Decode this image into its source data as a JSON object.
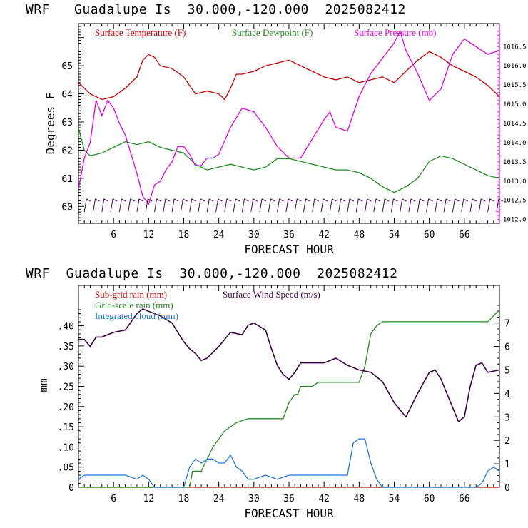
{
  "top_title": "WRF   Guadalupe Is  30.000,-120.000  2025082412",
  "bottom_title": "WRF  Guadalupe Is  30.000,-120.000  2025082412",
  "colors": {
    "temp": "#c00000",
    "dew": "#228b22",
    "pres": "#dd00dd",
    "subgrid": "#c00000",
    "gridscale": "#228b22",
    "cloud": "#1e78d2",
    "wind": "#3a0040",
    "wbarb": "#4b0055"
  },
  "chart_data": [
    {
      "type": "line",
      "xlabel": "FORECAST HOUR",
      "ylabel": "Degrees F",
      "xlim": [
        0,
        72
      ],
      "ylim": [
        59.4,
        66.5
      ],
      "y2lim": [
        1011.9,
        1017.1
      ],
      "x_ticks": [
        6,
        12,
        18,
        24,
        30,
        36,
        42,
        48,
        54,
        60,
        66
      ],
      "y_ticks": [
        60,
        61,
        62,
        63,
        64,
        65
      ],
      "y2_ticks": [
        "1012.0",
        "1012.5",
        "1013.0",
        "1013.5",
        "1014.0",
        "1014.5",
        "1015.0",
        "1015.5",
        "1016.0",
        "1016.5"
      ],
      "legend": [
        "Surface Temperature (F)",
        "Surface Dewpoint (F)",
        "Surface Pressure (mb)"
      ],
      "series": [
        {
          "name": "Surface Temperature (F)",
          "axis": "left",
          "x": [
            0,
            2,
            4,
            6,
            8,
            10,
            11,
            12,
            13,
            14,
            16,
            18,
            20,
            22,
            24,
            25,
            26,
            27,
            28,
            30,
            32,
            34,
            36,
            38,
            40,
            42,
            44,
            46,
            48,
            50,
            52,
            54,
            56,
            58,
            60,
            62,
            64,
            66,
            68,
            70,
            72
          ],
          "values": [
            64.4,
            64.0,
            63.8,
            63.9,
            64.2,
            64.6,
            65.2,
            65.4,
            65.3,
            65.0,
            64.9,
            64.6,
            64.0,
            64.1,
            64.0,
            63.8,
            64.2,
            64.7,
            64.7,
            64.8,
            65.0,
            65.1,
            65.2,
            65.0,
            64.8,
            64.6,
            64.5,
            64.6,
            64.4,
            64.5,
            64.6,
            64.4,
            64.8,
            65.2,
            65.5,
            65.3,
            65.0,
            64.8,
            64.6,
            64.3,
            63.9
          ]
        },
        {
          "name": "Surface Dewpoint (F)",
          "axis": "left",
          "x": [
            0,
            1,
            2,
            4,
            6,
            8,
            10,
            12,
            14,
            16,
            18,
            20,
            22,
            24,
            26,
            28,
            30,
            32,
            34,
            36,
            38,
            40,
            42,
            44,
            46,
            48,
            50,
            52,
            54,
            56,
            58,
            60,
            62,
            64,
            66,
            68,
            70,
            72
          ],
          "values": [
            62.8,
            62.0,
            61.8,
            61.9,
            62.1,
            62.3,
            62.2,
            62.3,
            62.1,
            62.0,
            61.9,
            61.5,
            61.3,
            61.4,
            61.5,
            61.4,
            61.3,
            61.4,
            61.7,
            61.7,
            61.6,
            61.5,
            61.4,
            61.3,
            61.3,
            61.2,
            61.0,
            60.7,
            60.5,
            60.7,
            61.0,
            61.6,
            61.8,
            61.7,
            61.5,
            61.3,
            61.1,
            61.0
          ]
        },
        {
          "name": "Surface Pressure (mb)",
          "axis": "right",
          "x": [
            0,
            1,
            2,
            3,
            4,
            5,
            6,
            7,
            8,
            9,
            10,
            11,
            12,
            13,
            14,
            15,
            16,
            17,
            18,
            19,
            20,
            21,
            22,
            23,
            24,
            26,
            28,
            30,
            32,
            34,
            36,
            38,
            40,
            42,
            43,
            44,
            46,
            48,
            50,
            52,
            54,
            55,
            56,
            58,
            60,
            62,
            64,
            66,
            68,
            70,
            72
          ],
          "values": [
            1012.8,
            1013.6,
            1014.0,
            1015.1,
            1014.7,
            1015.1,
            1014.9,
            1014.5,
            1014.2,
            1013.7,
            1013.2,
            1012.6,
            1012.4,
            1012.9,
            1013.0,
            1013.3,
            1013.5,
            1013.9,
            1013.9,
            1013.7,
            1013.4,
            1013.4,
            1013.6,
            1013.6,
            1013.7,
            1014.4,
            1014.9,
            1014.8,
            1014.4,
            1013.9,
            1013.6,
            1013.6,
            1014.1,
            1014.6,
            1014.8,
            1014.4,
            1014.3,
            1015.2,
            1015.8,
            1016.2,
            1016.6,
            1016.9,
            1016.4,
            1015.8,
            1015.1,
            1015.4,
            1016.3,
            1016.7,
            1016.5,
            1016.3,
            1016.4
          ]
        }
      ]
    },
    {
      "type": "line",
      "xlabel": "FORECAST HOUR",
      "ylabel": "mm",
      "xlim": [
        0,
        72
      ],
      "ylim": [
        0,
        0.5
      ],
      "y2lim": [
        0,
        8.6
      ],
      "x_ticks": [
        6,
        12,
        18,
        24,
        30,
        36,
        42,
        48,
        54,
        60,
        66
      ],
      "y_ticks": [
        ".40",
        ".35",
        ".30",
        ".25",
        ".20",
        ".15",
        ".10",
        ".05",
        "0"
      ],
      "y_tick_values": [
        0.4,
        0.35,
        0.3,
        0.25,
        0.2,
        0.15,
        0.1,
        0.05,
        0
      ],
      "y2_ticks": [
        "7",
        "6",
        "5",
        "4",
        "3",
        "2",
        "1",
        "0"
      ],
      "legend": [
        "Sub-grid rain (mm)",
        "Grid-scale rain (mm)",
        "Integrated cloud (mm)",
        "Surface Wind Speed (m/s)"
      ],
      "series": [
        {
          "name": "Surface Wind Speed (m/s)",
          "axis": "right",
          "x": [
            0,
            1,
            2,
            3,
            4,
            6,
            8,
            10,
            11,
            12,
            14,
            16,
            18,
            19,
            20,
            21,
            22,
            24,
            26,
            28,
            29,
            30,
            32,
            33,
            34,
            35,
            36,
            37,
            38,
            40,
            42,
            44,
            46,
            48,
            50,
            52,
            54,
            56,
            58,
            60,
            61,
            62,
            64,
            65,
            66,
            67,
            68,
            69,
            70,
            72
          ],
          "values": [
            6.3,
            6.3,
            6.0,
            6.4,
            6.4,
            6.6,
            6.7,
            7.4,
            7.6,
            7.5,
            7.3,
            7.0,
            6.2,
            5.9,
            5.7,
            5.4,
            5.5,
            6.0,
            6.6,
            6.5,
            6.9,
            7.0,
            6.7,
            5.9,
            5.2,
            4.8,
            4.6,
            4.9,
            5.3,
            5.3,
            5.3,
            5.5,
            5.2,
            5.0,
            4.9,
            4.5,
            3.6,
            3.0,
            4.0,
            4.9,
            5.0,
            4.6,
            3.4,
            2.8,
            3.0,
            4.3,
            5.2,
            5.3,
            4.9,
            5.0
          ]
        },
        {
          "name": "Sub-grid rain (mm)",
          "axis": "left",
          "x": [
            0,
            72
          ],
          "values": [
            0,
            0
          ]
        },
        {
          "name": "Grid-scale rain (mm)",
          "axis": "left",
          "x": [
            0,
            19,
            19.5,
            21,
            22,
            23,
            24,
            25,
            27,
            29,
            35,
            36,
            37,
            37.5,
            38,
            40,
            41,
            47,
            48,
            49,
            50,
            51,
            52,
            56,
            70,
            72
          ],
          "values": [
            0,
            0,
            0.04,
            0.04,
            0.07,
            0.1,
            0.12,
            0.14,
            0.16,
            0.17,
            0.17,
            0.21,
            0.23,
            0.23,
            0.25,
            0.25,
            0.26,
            0.26,
            0.26,
            0.3,
            0.38,
            0.4,
            0.41,
            0.41,
            0.41,
            0.44
          ]
        },
        {
          "name": "Integrated cloud (mm)",
          "axis": "left",
          "x": [
            0,
            1,
            2,
            4,
            6,
            8,
            10,
            11,
            12,
            13,
            14,
            15,
            16,
            17,
            18,
            19,
            20,
            21,
            22,
            23,
            24,
            25,
            26,
            27,
            28,
            29,
            30,
            32,
            34,
            36,
            38,
            40,
            42,
            44,
            46,
            47,
            48,
            49,
            50,
            51,
            52,
            54,
            56,
            58,
            60,
            62,
            64,
            66,
            68,
            69,
            70,
            71,
            72
          ],
          "values": [
            0.02,
            0.03,
            0.03,
            0.03,
            0.03,
            0.03,
            0.02,
            0.03,
            0.02,
            0.0,
            0.0,
            0.0,
            0.0,
            0.0,
            0.0,
            0.05,
            0.07,
            0.06,
            0.07,
            0.07,
            0.06,
            0.06,
            0.08,
            0.05,
            0.04,
            0.02,
            0.02,
            0.03,
            0.02,
            0.03,
            0.03,
            0.03,
            0.03,
            0.03,
            0.03,
            0.11,
            0.12,
            0.12,
            0.06,
            0.02,
            0.0,
            0.0,
            0.0,
            0.0,
            0.0,
            0.0,
            0.0,
            0.0,
            0.0,
            0.01,
            0.04,
            0.05,
            0.04
          ]
        }
      ]
    }
  ]
}
